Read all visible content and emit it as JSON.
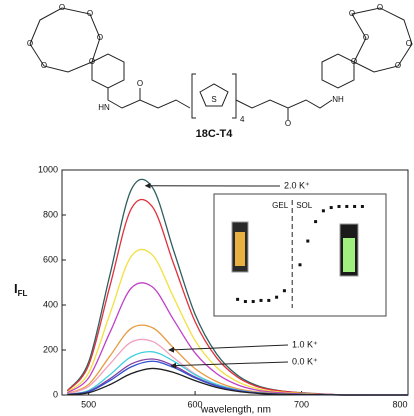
{
  "structure": {
    "oxygen": "O",
    "amine_left": "HN",
    "amine_right": "NH",
    "sulfur": "S",
    "repeat": "4",
    "compound": "18C-T4"
  },
  "chart_data": {
    "type": "line",
    "x_label": "wavelength, nm",
    "y_label": {
      "main": "I",
      "sub": "FL"
    },
    "x": [
      480,
      500,
      520,
      540,
      560,
      580,
      600,
      620,
      640,
      660,
      680,
      700,
      720,
      740,
      760,
      780,
      800
    ],
    "xlim": [
      475,
      800
    ],
    "xticks": [
      500,
      600,
      700,
      800
    ],
    "ylim": [
      0,
      1000
    ],
    "yticks": [
      0,
      200,
      400,
      600,
      800,
      1000
    ],
    "series": [
      {
        "color": "#2f5f5f",
        "values": [
          19,
          146,
          534,
          912,
          922,
          640,
          359,
          184,
          87,
          39,
          19,
          10,
          5,
          0,
          0,
          0,
          0
        ]
      },
      {
        "color": "#e0303a",
        "values": [
          18,
          132,
          484,
          827,
          836,
          581,
          326,
          167,
          79,
          35,
          18,
          9,
          4,
          0,
          0,
          0,
          0
        ]
      },
      {
        "color": "#f2e040",
        "values": [
          13,
          98,
          360,
          616,
          622,
          432,
          242,
          124,
          59,
          26,
          13,
          7,
          3,
          0,
          0,
          0,
          0
        ]
      },
      {
        "color": "#c040c8",
        "values": [
          10,
          76,
          278,
          475,
          480,
          333,
          187,
          96,
          45,
          20,
          10,
          5,
          3,
          0,
          0,
          0,
          0
        ]
      },
      {
        "color": "#e89a40",
        "values": [
          6,
          47,
          173,
          296,
          299,
          208,
          117,
          60,
          28,
          13,
          6,
          3,
          2,
          0,
          0,
          0,
          0
        ]
      },
      {
        "color": "#f0a0c0",
        "values": [
          5,
          38,
          138,
          235,
          238,
          165,
          93,
          48,
          23,
          10,
          5,
          3,
          1,
          0,
          0,
          0,
          0
        ]
      },
      {
        "color": "#40d0e0",
        "values": [
          3,
          20,
          90,
          170,
          192,
          150,
          90,
          48,
          23,
          10,
          5,
          3,
          1,
          0,
          0,
          0,
          0
        ]
      },
      {
        "color": "#8040a0",
        "values": [
          3,
          16,
          72,
          138,
          160,
          130,
          80,
          42,
          20,
          9,
          4,
          2,
          1,
          0,
          0,
          0,
          0
        ]
      },
      {
        "color": "#3050d0",
        "values": [
          2,
          14,
          64,
          125,
          150,
          122,
          76,
          40,
          19,
          8,
          4,
          2,
          1,
          0,
          0,
          0,
          0
        ]
      },
      {
        "color": "#202020",
        "values": [
          2,
          10,
          46,
          95,
          118,
          100,
          64,
          34,
          16,
          7,
          3,
          2,
          1,
          0,
          0,
          0,
          0
        ]
      }
    ],
    "annotations": [
      {
        "text": "2.0 K⁺",
        "x": 548,
        "y": 930
      },
      {
        "text": "1.0 K⁺",
        "x": 570,
        "y": 200
      },
      {
        "text": "0.0 K⁺",
        "x": 572,
        "y": 130
      }
    ],
    "inset": {
      "labels": [
        "GEL",
        "SOL"
      ],
      "x": [
        1,
        1.5,
        2,
        2.5,
        3,
        3.5,
        4,
        5,
        5.5,
        6,
        6.5,
        7,
        7.5,
        8,
        8.5,
        9
      ],
      "values": [
        0.08,
        0.06,
        0.06,
        0.07,
        0.07,
        0.1,
        0.16,
        0.4,
        0.62,
        0.8,
        0.9,
        0.93,
        0.94,
        0.94,
        0.94,
        0.94
      ],
      "xlim": [
        0,
        10
      ],
      "ylim": [
        0,
        1
      ],
      "transition": 4.5
    }
  }
}
